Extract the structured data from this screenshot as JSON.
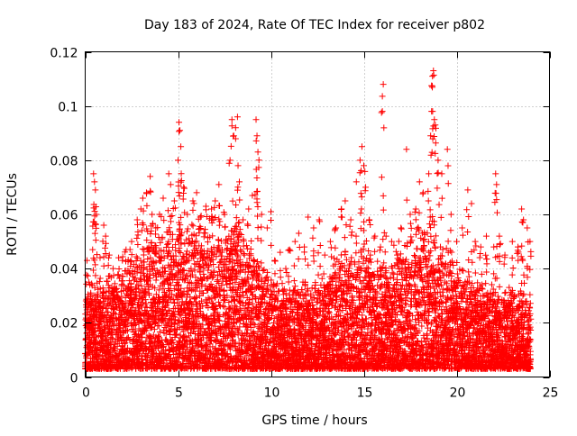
{
  "chart_data": {
    "type": "scatter",
    "title": "Day 183 of 2024, Rate Of TEC Index for receiver p802",
    "xlabel": "GPS time / hours",
    "ylabel": "ROTI / TECUs",
    "xlim": [
      0,
      25
    ],
    "ylim": [
      0,
      0.12
    ],
    "xticks": [
      0,
      5,
      10,
      15,
      20,
      25
    ],
    "xtick_labels": [
      "0",
      "5",
      "10",
      "15",
      "20",
      "25"
    ],
    "yticks": [
      0,
      0.02,
      0.04,
      0.06,
      0.08,
      0.1,
      0.12
    ],
    "ytick_labels": [
      "0",
      "0.02",
      "0.04",
      "0.06",
      "0.08",
      "0.1",
      "0.12"
    ],
    "grid": true,
    "marker": "plus",
    "color": "#ff0000",
    "series": [
      {
        "name": "ROTI",
        "points": [
          [
            0.1,
            0.043
          ],
          [
            0.2,
            0.035
          ],
          [
            0.3,
            0.031
          ],
          [
            0.4,
            0.047
          ],
          [
            0.45,
            0.075
          ],
          [
            0.5,
            0.072
          ],
          [
            0.55,
            0.069
          ],
          [
            0.6,
            0.06
          ],
          [
            0.8,
            0.044
          ],
          [
            1.0,
            0.056
          ],
          [
            1.1,
            0.052
          ],
          [
            1.3,
            0.045
          ],
          [
            1.5,
            0.04
          ],
          [
            1.8,
            0.044
          ],
          [
            2.0,
            0.043
          ],
          [
            2.2,
            0.047
          ],
          [
            2.5,
            0.05
          ],
          [
            2.8,
            0.058
          ],
          [
            3.0,
            0.062
          ],
          [
            3.1,
            0.066
          ],
          [
            3.3,
            0.068
          ],
          [
            3.5,
            0.074
          ],
          [
            3.6,
            0.06
          ],
          [
            3.8,
            0.055
          ],
          [
            4.0,
            0.06
          ],
          [
            4.2,
            0.066
          ],
          [
            4.5,
            0.075
          ],
          [
            4.6,
            0.071
          ],
          [
            4.8,
            0.065
          ],
          [
            5.0,
            0.08
          ],
          [
            5.05,
            0.094
          ],
          [
            5.1,
            0.091
          ],
          [
            5.15,
            0.085
          ],
          [
            5.3,
            0.07
          ],
          [
            5.5,
            0.06
          ],
          [
            5.8,
            0.065
          ],
          [
            6.0,
            0.068
          ],
          [
            6.2,
            0.059
          ],
          [
            6.5,
            0.063
          ],
          [
            6.8,
            0.062
          ],
          [
            7.0,
            0.065
          ],
          [
            7.2,
            0.071
          ],
          [
            7.5,
            0.06
          ],
          [
            7.8,
            0.08
          ],
          [
            7.9,
            0.095
          ],
          [
            8.0,
            0.089
          ],
          [
            8.1,
            0.092
          ],
          [
            8.2,
            0.096
          ],
          [
            8.3,
            0.072
          ],
          [
            8.5,
            0.058
          ],
          [
            8.8,
            0.062
          ],
          [
            9.0,
            0.067
          ],
          [
            9.2,
            0.095
          ],
          [
            9.25,
            0.089
          ],
          [
            9.3,
            0.083
          ],
          [
            9.5,
            0.06
          ],
          [
            9.8,
            0.055
          ],
          [
            10.0,
            0.061
          ],
          [
            10.2,
            0.043
          ],
          [
            10.5,
            0.046
          ],
          [
            10.8,
            0.04
          ],
          [
            11.0,
            0.047
          ],
          [
            11.3,
            0.05
          ],
          [
            11.5,
            0.053
          ],
          [
            11.8,
            0.048
          ],
          [
            12.0,
            0.059
          ],
          [
            12.3,
            0.055
          ],
          [
            12.6,
            0.058
          ],
          [
            12.9,
            0.045
          ],
          [
            13.2,
            0.05
          ],
          [
            13.5,
            0.055
          ],
          [
            13.8,
            0.062
          ],
          [
            14.0,
            0.065
          ],
          [
            14.3,
            0.058
          ],
          [
            14.6,
            0.072
          ],
          [
            14.8,
            0.08
          ],
          [
            14.9,
            0.085
          ],
          [
            15.0,
            0.078
          ],
          [
            15.1,
            0.07
          ],
          [
            15.3,
            0.058
          ],
          [
            15.6,
            0.052
          ],
          [
            15.9,
            0.048
          ],
          [
            16.0,
            0.098
          ],
          [
            16.05,
            0.108
          ],
          [
            16.2,
            0.052
          ],
          [
            16.5,
            0.05
          ],
          [
            16.8,
            0.045
          ],
          [
            17.0,
            0.055
          ],
          [
            17.3,
            0.084
          ],
          [
            17.5,
            0.06
          ],
          [
            17.8,
            0.062
          ],
          [
            18.0,
            0.072
          ],
          [
            18.2,
            0.068
          ],
          [
            18.5,
            0.075
          ],
          [
            18.6,
            0.089
          ],
          [
            18.65,
            0.098
          ],
          [
            18.7,
            0.111
          ],
          [
            18.75,
            0.113
          ],
          [
            18.8,
            0.095
          ],
          [
            18.85,
            0.093
          ],
          [
            19.0,
            0.08
          ],
          [
            19.2,
            0.075
          ],
          [
            19.5,
            0.084
          ],
          [
            19.7,
            0.06
          ],
          [
            20.0,
            0.05
          ],
          [
            20.3,
            0.055
          ],
          [
            20.6,
            0.069
          ],
          [
            20.8,
            0.064
          ],
          [
            21.0,
            0.05
          ],
          [
            21.3,
            0.048
          ],
          [
            21.6,
            0.052
          ],
          [
            22.0,
            0.048
          ],
          [
            22.1,
            0.075
          ],
          [
            22.15,
            0.071
          ],
          [
            22.3,
            0.052
          ],
          [
            22.6,
            0.045
          ],
          [
            23.0,
            0.05
          ],
          [
            23.3,
            0.048
          ],
          [
            23.5,
            0.062
          ],
          [
            23.6,
            0.058
          ],
          [
            23.8,
            0.055
          ],
          [
            23.95,
            0.05
          ]
        ],
        "dense_band": {
          "hour_start": 0,
          "hour_end": 24,
          "hour_step": 0.01,
          "base_min": 0.003,
          "profile_hours": [
            0,
            1,
            2,
            3,
            4,
            5,
            6,
            7,
            8,
            9,
            10,
            11,
            12,
            13,
            14,
            15,
            16,
            17,
            18,
            19,
            20,
            21,
            22,
            23,
            24
          ],
          "profile_upper": [
            0.027,
            0.03,
            0.035,
            0.043,
            0.048,
            0.05,
            0.048,
            0.05,
            0.05,
            0.04,
            0.03,
            0.028,
            0.03,
            0.033,
            0.038,
            0.04,
            0.036,
            0.04,
            0.047,
            0.042,
            0.034,
            0.03,
            0.028,
            0.028,
            0.025
          ]
        }
      }
    ]
  }
}
